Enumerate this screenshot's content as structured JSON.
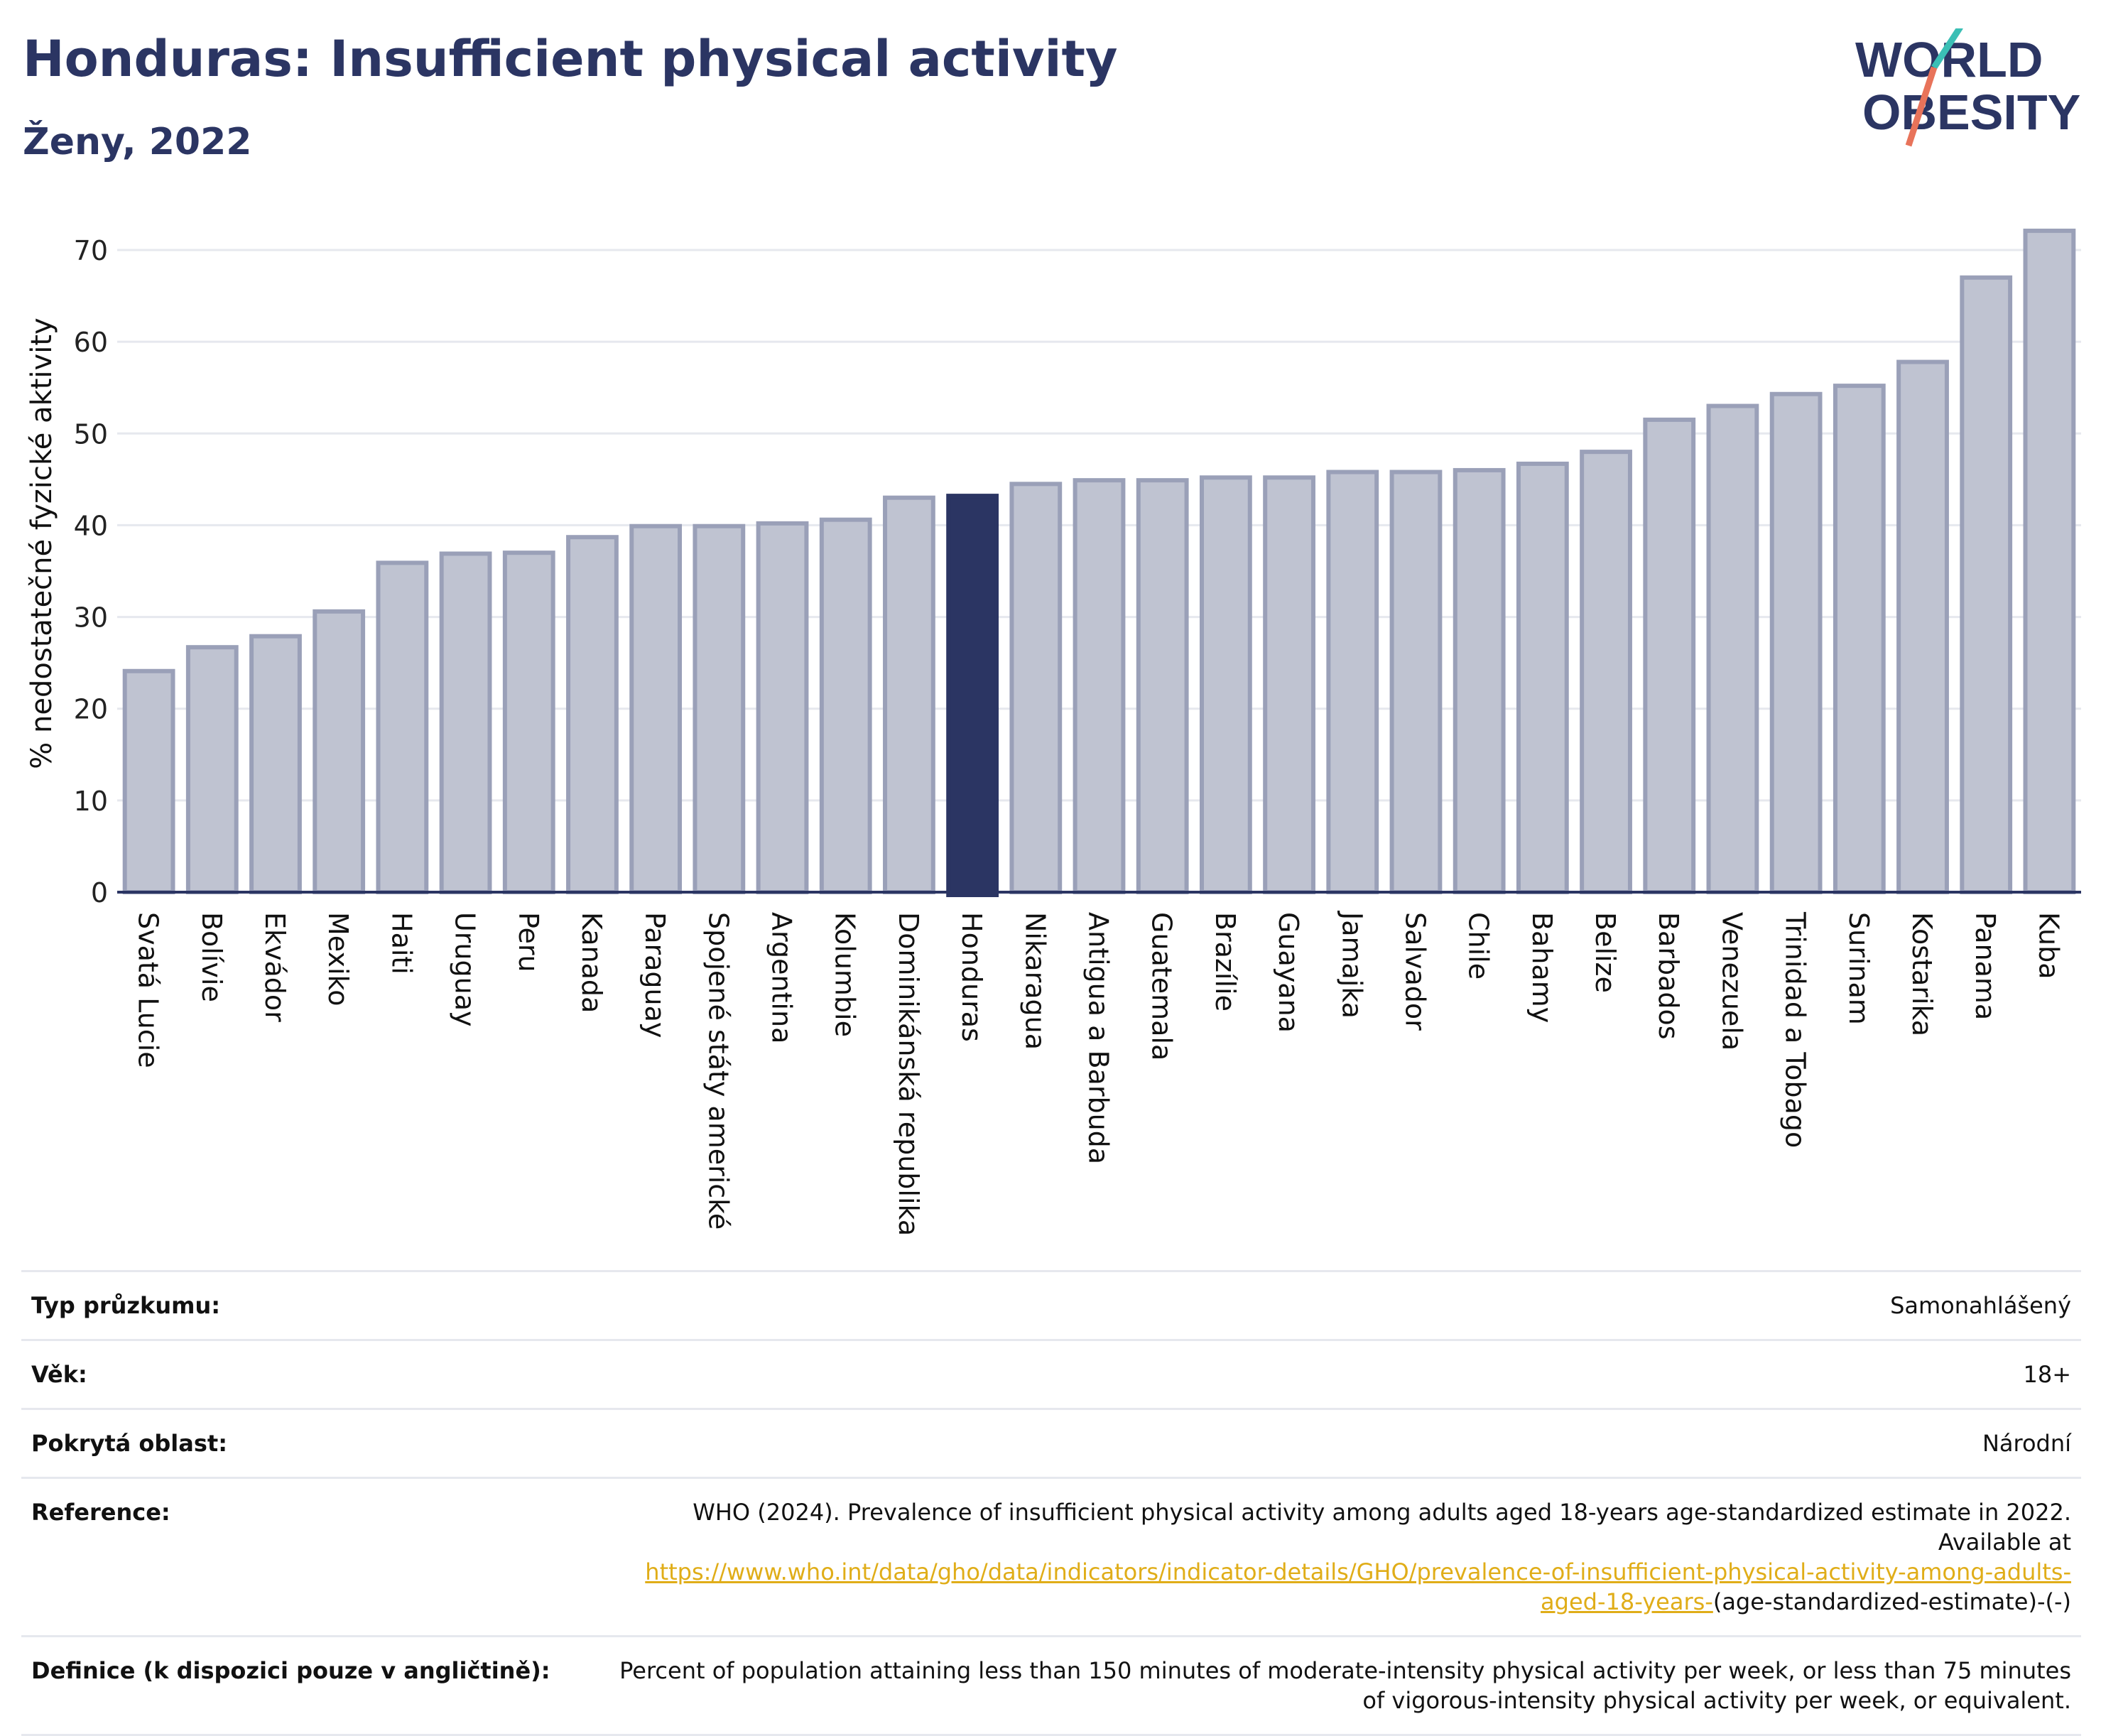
{
  "header": {
    "title": "Honduras: Insufficient physical activity",
    "subtitle": "Ženy, 2022"
  },
  "logo": {
    "line1": "WORLD",
    "line2": "OBESITY",
    "colors": [
      "#2b3563",
      "#3bbfb5",
      "#e8735a"
    ]
  },
  "colors": {
    "bar": "#bfc3d1",
    "bar_stroke": "#9aa0b8",
    "highlight": "#2b3563",
    "title": "#2b3563",
    "link": "#e0ad18"
  },
  "chart_data": {
    "type": "bar",
    "ylabel": "% nedostatečné fyzické aktivity",
    "ylim": [
      0,
      72
    ],
    "yticks": [
      0,
      10,
      20,
      30,
      40,
      50,
      60,
      70
    ],
    "grid": true,
    "highlight": "Honduras",
    "categories": [
      "Svatá Lucie",
      "Bolívie",
      "Ekvádor",
      "Mexiko",
      "Haiti",
      "Uruguay",
      "Peru",
      "Kanada",
      "Paraguay",
      "Spojené státy americké",
      "Argentina",
      "Kolumbie",
      "Dominikánská republika",
      "Honduras",
      "Nikaragua",
      "Antigua a Barbuda",
      "Guatemala",
      "Brazílie",
      "Guayana",
      "Jamajka",
      "Salvador",
      "Chile",
      "Bahamy",
      "Belize",
      "Barbados",
      "Venezuela",
      "Trinidad a Tobago",
      "Surinam",
      "Kostarika",
      "Panama",
      "Kuba"
    ],
    "values": [
      24.1,
      26.7,
      27.9,
      30.6,
      35.9,
      36.9,
      37.0,
      38.7,
      39.9,
      39.9,
      40.2,
      40.6,
      43.0,
      43.2,
      44.5,
      44.9,
      44.9,
      45.2,
      45.2,
      45.8,
      45.8,
      46.0,
      46.7,
      48.0,
      51.5,
      53.0,
      54.3,
      55.2,
      57.8,
      67.0,
      72.1
    ]
  },
  "info": {
    "survey_type": {
      "label": "Typ průzkumu:",
      "value": "Samonahlášený"
    },
    "age": {
      "label": "Věk:",
      "value": "18+"
    },
    "coverage": {
      "label": "Pokrytá oblast:",
      "value": "Národní"
    },
    "reference": {
      "label": "Reference:",
      "text": "WHO (2024). Prevalence of insufficient physical activity among adults aged 18-years age-standardized estimate in 2022. Available at",
      "link": "https://www.who.int/data/gho/data/indicators/indicator-details/GHO/prevalence-of-insufficient-physical-activity-among-adults-aged-18-years-",
      "suffix": "(age-standardized-estimate)-(-)"
    },
    "definition": {
      "label": "Definice (k dispozici pouze v angličtině):",
      "value": "Percent of population attaining less than 150 minutes of moderate-intensity physical activity per week, or less than 75 minutes of vigorous-intensity physical activity per week, or equivalent."
    }
  }
}
